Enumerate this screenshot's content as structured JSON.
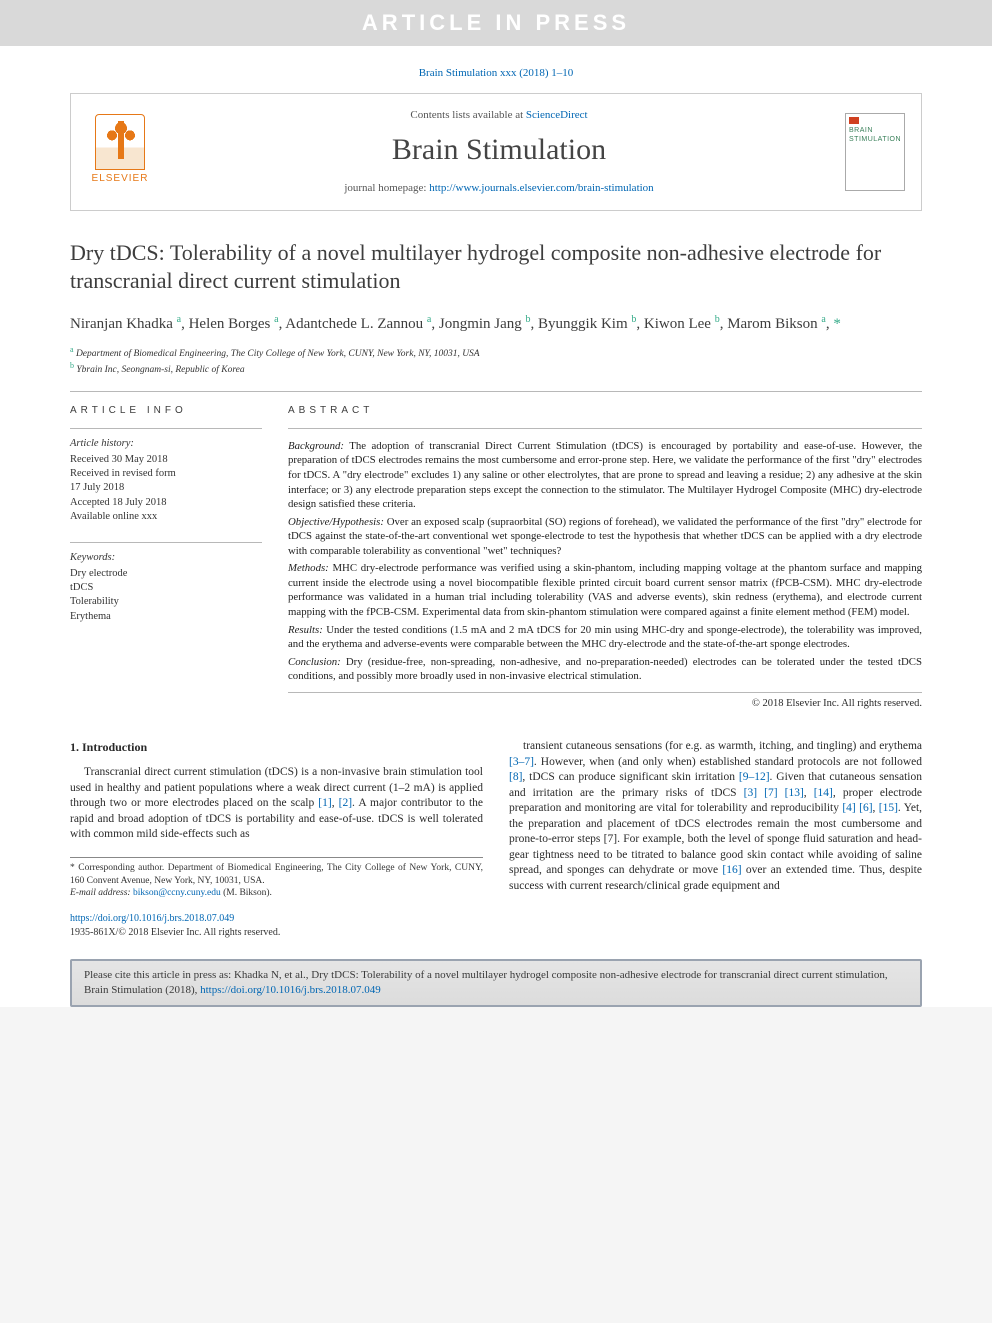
{
  "banner": "ARTICLE IN PRESS",
  "citeTop": "Brain Stimulation xxx (2018) 1–10",
  "journalBox": {
    "elsevier": "ELSEVIER",
    "contentsPrefix": "Contents lists available at ",
    "scienceDirect": "ScienceDirect",
    "journalName": "Brain Stimulation",
    "homepagePrefix": "journal homepage: ",
    "homepageUrl": "http://www.journals.elsevier.com/brain-stimulation",
    "coverBrand1": "BRAIN",
    "coverBrand2": "STIMULATION"
  },
  "title": "Dry tDCS: Tolerability of a novel multilayer hydrogel composite non-adhesive electrode for transcranial direct current stimulation",
  "authors": [
    {
      "name": "Niranjan Khadka",
      "aff": "a"
    },
    {
      "name": "Helen Borges",
      "aff": "a"
    },
    {
      "name": "Adantchede L. Zannou",
      "aff": "a"
    },
    {
      "name": "Jongmin Jang",
      "aff": "b"
    },
    {
      "name": "Byunggik Kim",
      "aff": "b"
    },
    {
      "name": "Kiwon Lee",
      "aff": "b"
    },
    {
      "name": "Marom Bikson",
      "aff": "a",
      "corr": true
    }
  ],
  "affiliations": {
    "a": "Department of Biomedical Engineering, The City College of New York, CUNY, New York, NY, 10031, USA",
    "b": "Ybrain Inc, Seongnam-si, Republic of Korea"
  },
  "articleInfo": {
    "heading": "ARTICLE INFO",
    "historyLabel": "Article history:",
    "history": [
      "Received 30 May 2018",
      "Received in revised form",
      "17 July 2018",
      "Accepted 18 July 2018",
      "Available online xxx"
    ],
    "keywordsLabel": "Keywords:",
    "keywords": [
      "Dry electrode",
      "tDCS",
      "Tolerability",
      "Erythema"
    ]
  },
  "abstract": {
    "heading": "ABSTRACT",
    "sections": [
      {
        "label": "Background:",
        "text": "The adoption of transcranial Direct Current Stimulation (tDCS) is encouraged by portability and ease-of-use. However, the preparation of tDCS electrodes remains the most cumbersome and error-prone step. Here, we validate the performance of the first \"dry\" electrodes for tDCS. A \"dry electrode\" excludes 1) any saline or other electrolytes, that are prone to spread and leaving a residue; 2) any adhesive at the skin interface; or 3) any electrode preparation steps except the connection to the stimulator. The Multilayer Hydrogel Composite (MHC) dry-electrode design satisfied these criteria."
      },
      {
        "label": "Objective/Hypothesis:",
        "text": "Over an exposed scalp (supraorbital (SO) regions of forehead), we validated the performance of the first \"dry\" electrode for tDCS against the state-of-the-art conventional wet sponge-electrode to test the hypothesis that whether tDCS can be applied with a dry electrode with comparable tolerability as conventional \"wet\" techniques?"
      },
      {
        "label": "Methods:",
        "text": "MHC dry-electrode performance was verified using a skin-phantom, including mapping voltage at the phantom surface and mapping current inside the electrode using a novel biocompatible flexible printed circuit board current sensor matrix (fPCB-CSM). MHC dry-electrode performance was validated in a human trial including tolerability (VAS and adverse events), skin redness (erythema), and electrode current mapping with the fPCB-CSM. Experimental data from skin-phantom stimulation were compared against a finite element method (FEM) model."
      },
      {
        "label": "Results:",
        "text": "Under the tested conditions (1.5 mA and 2 mA tDCS for 20 min using MHC-dry and sponge-electrode), the tolerability was improved, and the erythema and adverse-events were comparable between the MHC dry-electrode and the state-of-the-art sponge electrodes."
      },
      {
        "label": "Conclusion:",
        "text": "Dry (residue-free, non-spreading, non-adhesive, and no-preparation-needed) electrodes can be tolerated under the tested tDCS conditions, and possibly more broadly used in non-invasive electrical stimulation."
      }
    ],
    "copyright": "© 2018 Elsevier Inc. All rights reserved."
  },
  "body": {
    "introHeading": "1. Introduction",
    "col1": "Transcranial direct current stimulation (tDCS) is a non-invasive brain stimulation tool used in healthy and patient populations where a weak direct current (1–2 mA) is applied through two or more electrodes placed on the scalp [1], [2]. A major contributor to the rapid and broad adoption of tDCS is portability and ease-of-use. tDCS is well tolerated with common mild side-effects such as",
    "col2": "transient cutaneous sensations (for e.g. as warmth, itching, and tingling) and erythema [3–7]. However, when (and only when) established standard protocols are not followed [8], tDCS can produce significant skin irritation [9–12]. Given that cutaneous sensation and irritation are the primary risks of tDCS [3] [7] [13], [14], proper electrode preparation and monitoring are vital for tolerability and reproducibility [4] [6], [15]. Yet, the preparation and placement of tDCS electrodes remain the most cumbersome and prone-to-error steps [7]. For example, both the level of sponge fluid saturation and head-gear tightness need to be titrated to balance good skin contact while avoiding of saline spread, and sponges can dehydrate or move [16] over an extended time. Thus, despite success with current research/clinical grade equipment and",
    "refs1": [
      "[1]",
      "[2]"
    ],
    "refs2": [
      "[3–7]",
      "[8]",
      "[9–12]",
      "[3]",
      "[7]",
      "[13]",
      "[14]",
      "[4]",
      "[6]",
      "[15]",
      "[7]",
      "[16]"
    ]
  },
  "footnote": {
    "corrText": "Corresponding author. Department of Biomedical Engineering, The City College of New York, CUNY, 160 Convent Avenue, New York, NY, 10031, USA.",
    "emailLabel": "E-mail address:",
    "email": "bikson@ccny.cuny.edu",
    "emailName": "(M. Bikson)."
  },
  "doi": {
    "url": "https://doi.org/10.1016/j.brs.2018.07.049",
    "issn": "1935-861X/© 2018 Elsevier Inc. All rights reserved."
  },
  "citeBox": "Please cite this article in press as: Khadka N, et al., Dry tDCS: Tolerability of a novel multilayer hydrogel composite non-adhesive electrode for transcranial direct current stimulation, Brain Stimulation (2018), ",
  "citeBoxUrl": "https://doi.org/10.1016/j.brs.2018.07.049"
}
